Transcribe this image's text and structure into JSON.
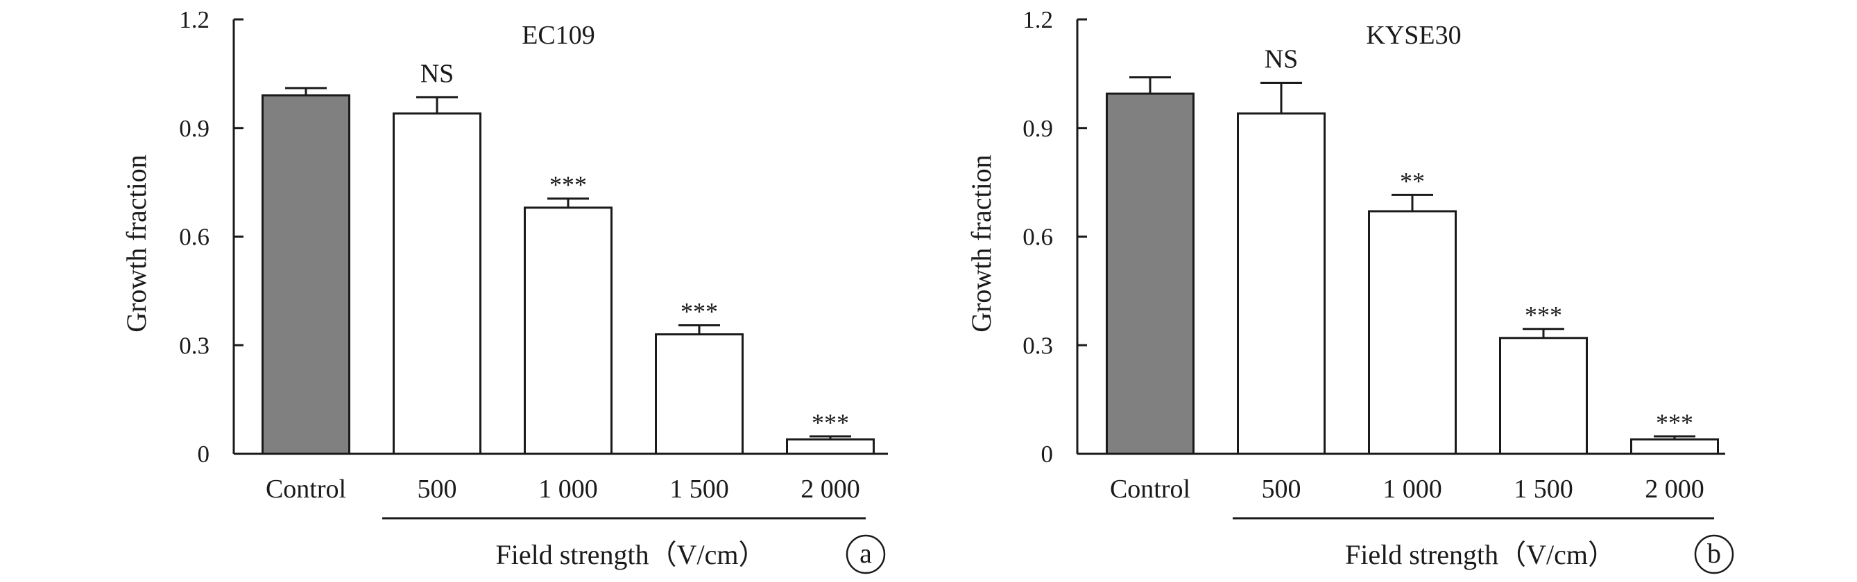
{
  "chart_data": [
    {
      "type": "bar",
      "title": "EC109",
      "panel_label": "a",
      "categories": [
        "Control",
        "500",
        "1 000",
        "1 500",
        "2 000"
      ],
      "values": [
        0.99,
        0.94,
        0.68,
        0.33,
        0.04
      ],
      "errors": [
        0.02,
        0.045,
        0.025,
        0.025,
        0.008
      ],
      "significance": [
        "",
        "NS",
        "***",
        "***",
        "***"
      ],
      "bar_colors": [
        "#808080",
        "#ffffff",
        "#ffffff",
        "#ffffff",
        "#ffffff"
      ],
      "ylabel": "Growth fraction",
      "xlabel": "Field strength（V/cm）",
      "ylim": [
        0,
        1.2
      ],
      "yticks": [
        "0",
        "0.3",
        "0.6",
        "0.9",
        "1.2"
      ]
    },
    {
      "type": "bar",
      "title": "KYSE30",
      "panel_label": "b",
      "categories": [
        "Control",
        "500",
        "1 000",
        "1 500",
        "2 000"
      ],
      "values": [
        0.995,
        0.94,
        0.67,
        0.32,
        0.04
      ],
      "errors": [
        0.045,
        0.085,
        0.045,
        0.025,
        0.008
      ],
      "significance": [
        "",
        "NS",
        "**",
        "***",
        "***"
      ],
      "bar_colors": [
        "#808080",
        "#ffffff",
        "#ffffff",
        "#ffffff",
        "#ffffff"
      ],
      "ylabel": "Growth fraction",
      "xlabel": "Field strength（V/cm）",
      "ylim": [
        0,
        1.2
      ],
      "yticks": [
        "0",
        "0.3",
        "0.6",
        "0.9",
        "1.2"
      ]
    }
  ]
}
